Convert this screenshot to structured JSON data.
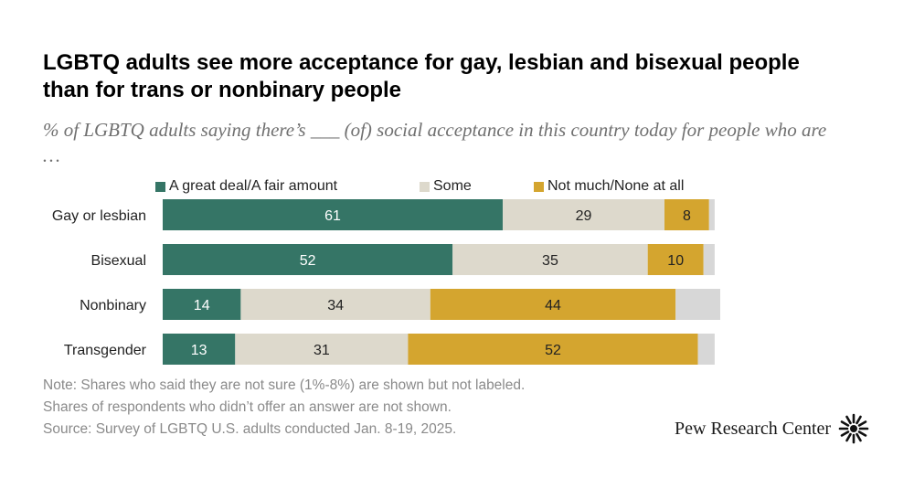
{
  "title": "LGBTQ adults see more acceptance for gay, lesbian and bisexual people than for trans or nonbinary people",
  "subtitle": "% of LGBTQ adults saying there’s ___ (of) social acceptance in this country today for people who are …",
  "legend": [
    {
      "label": "A great deal/A fair amount",
      "color": "#357566"
    },
    {
      "label": "Some",
      "color": "#ddd9cc"
    },
    {
      "label": "Not much/None at all",
      "color": "#d4a52f"
    }
  ],
  "chart_data": {
    "type": "bar",
    "orientation": "horizontal",
    "stacked": true,
    "categories": [
      "Gay or lesbian",
      "Bisexual",
      "Nonbinary",
      "Transgender"
    ],
    "series": [
      {
        "name": "A great deal/A fair amount",
        "color": "#357566",
        "text_color": "#ffffff",
        "values": [
          61,
          52,
          14,
          13
        ]
      },
      {
        "name": "Some",
        "color": "#ddd9cc",
        "text_color": "#222222",
        "values": [
          29,
          35,
          34,
          31
        ]
      },
      {
        "name": "Not much/None at all",
        "color": "#d4a52f",
        "text_color": "#222222",
        "values": [
          8,
          10,
          44,
          52
        ]
      },
      {
        "name": "Not sure",
        "color": "#d7d7d7",
        "labeled": false,
        "values": [
          1,
          2,
          8,
          3
        ]
      }
    ],
    "xlim": [
      0,
      100
    ]
  },
  "notes": [
    "Note: Shares who said they are not sure (1%-8%) are shown but not labeled.",
    "Shares of respondents who didn’t offer an answer are not shown.",
    "Source: Survey of LGBTQ U.S. adults conducted Jan. 8-19, 2025."
  ],
  "brand": {
    "name": "Pew Research Center"
  }
}
